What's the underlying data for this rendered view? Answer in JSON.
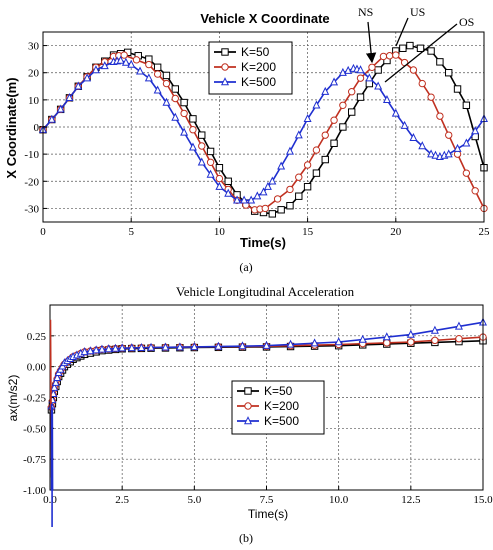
{
  "chart_data": [
    {
      "id": "a",
      "type": "line",
      "title": "Vehicle X Coordinate",
      "xlabel": "Time(s)",
      "ylabel": "X Coordinate(m)",
      "caption": "(a)",
      "xlim": [
        0,
        25
      ],
      "ylim": [
        -35,
        35
      ],
      "xticks": [
        0,
        5,
        10,
        15,
        20,
        25
      ],
      "yticks": [
        -30,
        -20,
        -10,
        0,
        10,
        20,
        30
      ],
      "grid": true,
      "legend_position": "top-right",
      "annotations": [
        "NS",
        "US",
        "OS"
      ],
      "series": [
        {
          "name": "K=50",
          "color": "#000000",
          "marker": "square",
          "x": [
            0,
            1,
            2,
            3,
            4,
            4.8,
            6,
            7,
            8,
            9,
            10,
            11,
            12,
            13,
            14,
            15,
            16,
            17,
            18,
            19,
            20,
            20.8,
            22,
            23,
            24,
            25
          ],
          "y": [
            -1,
            6.5,
            15,
            22,
            26.5,
            27.5,
            25,
            19,
            9,
            -3,
            -15,
            -25,
            -31,
            -32,
            -29,
            -22,
            -12,
            0,
            11,
            21,
            28,
            30,
            28,
            20,
            8,
            -15
          ]
        },
        {
          "name": "K=200",
          "color": "#c03020",
          "marker": "circle",
          "x": [
            0,
            1,
            2,
            3,
            4,
            4.6,
            6,
            7,
            8,
            9,
            10,
            11,
            12,
            12.6,
            14,
            15,
            16,
            17,
            18,
            19.3,
            20,
            21,
            22,
            23,
            24,
            25
          ],
          "y": [
            -1,
            6.5,
            15,
            22,
            26,
            26.5,
            23,
            16,
            5,
            -7,
            -19,
            -27,
            -30.5,
            -30,
            -23,
            -14,
            -3,
            8,
            18,
            26,
            26.5,
            21,
            11,
            -3,
            -17,
            -30
          ]
        },
        {
          "name": "K=500",
          "color": "#1f2fd0",
          "marker": "triangle",
          "x": [
            0,
            1,
            2,
            3,
            4,
            4.4,
            5,
            6,
            7,
            8,
            9,
            10,
            11,
            11.8,
            12.5,
            13,
            14,
            15,
            16,
            17,
            17.6,
            18,
            19,
            20,
            21,
            22,
            22.5,
            23,
            24,
            25
          ],
          "y": [
            -1,
            6.5,
            15,
            21,
            24,
            24.5,
            23,
            18,
            9,
            -2,
            -13,
            -22,
            -27,
            -27,
            -24,
            -20,
            -9,
            3,
            13,
            20,
            21.5,
            21,
            15,
            5,
            -4,
            -10,
            -11,
            -10,
            -6,
            3
          ]
        }
      ]
    },
    {
      "id": "b",
      "type": "line",
      "title": "Vehicle Longitudinal Acceleration",
      "xlabel": "Time(s)",
      "ylabel": "ax(m/s2)",
      "caption": "(b)",
      "xlim": [
        0,
        15
      ],
      "ylim": [
        -1,
        0.5
      ],
      "xticks": [
        0.0,
        2.5,
        5.0,
        7.5,
        10.0,
        12.5,
        15.0
      ],
      "yticks": [
        -1.0,
        -0.75,
        -0.5,
        -0.25,
        0.0,
        0.25
      ],
      "grid": true,
      "legend_position": "center",
      "series": [
        {
          "name": "K=50",
          "color": "#000000",
          "marker": "square",
          "x": [
            0.05,
            0.15,
            0.3,
            0.5,
            0.8,
            1.2,
            1.8,
            2.5,
            3.5,
            5,
            7.5,
            10,
            12.5,
            15
          ],
          "y": [
            -0.35,
            -0.2,
            -0.08,
            0.0,
            0.06,
            0.1,
            0.13,
            0.145,
            0.15,
            0.155,
            0.16,
            0.17,
            0.19,
            0.21
          ]
        },
        {
          "name": "K=200",
          "color": "#c03020",
          "marker": "circle",
          "x": [
            0.05,
            0.15,
            0.3,
            0.5,
            0.8,
            1.2,
            1.8,
            2.5,
            3.5,
            5,
            7.5,
            10,
            12.5,
            15
          ],
          "y": [
            -0.33,
            -0.18,
            -0.06,
            0.02,
            0.08,
            0.12,
            0.14,
            0.15,
            0.155,
            0.16,
            0.165,
            0.18,
            0.2,
            0.24
          ]
        },
        {
          "name": "K=500",
          "color": "#1f2fd0",
          "marker": "triangle",
          "x": [
            0.05,
            0.15,
            0.3,
            0.5,
            0.8,
            1.2,
            1.8,
            2.5,
            3.5,
            5,
            7.5,
            10,
            12.5,
            15
          ],
          "y": [
            -0.32,
            -0.17,
            -0.05,
            0.03,
            0.08,
            0.12,
            0.14,
            0.15,
            0.155,
            0.16,
            0.17,
            0.2,
            0.26,
            0.36
          ]
        }
      ]
    }
  ]
}
